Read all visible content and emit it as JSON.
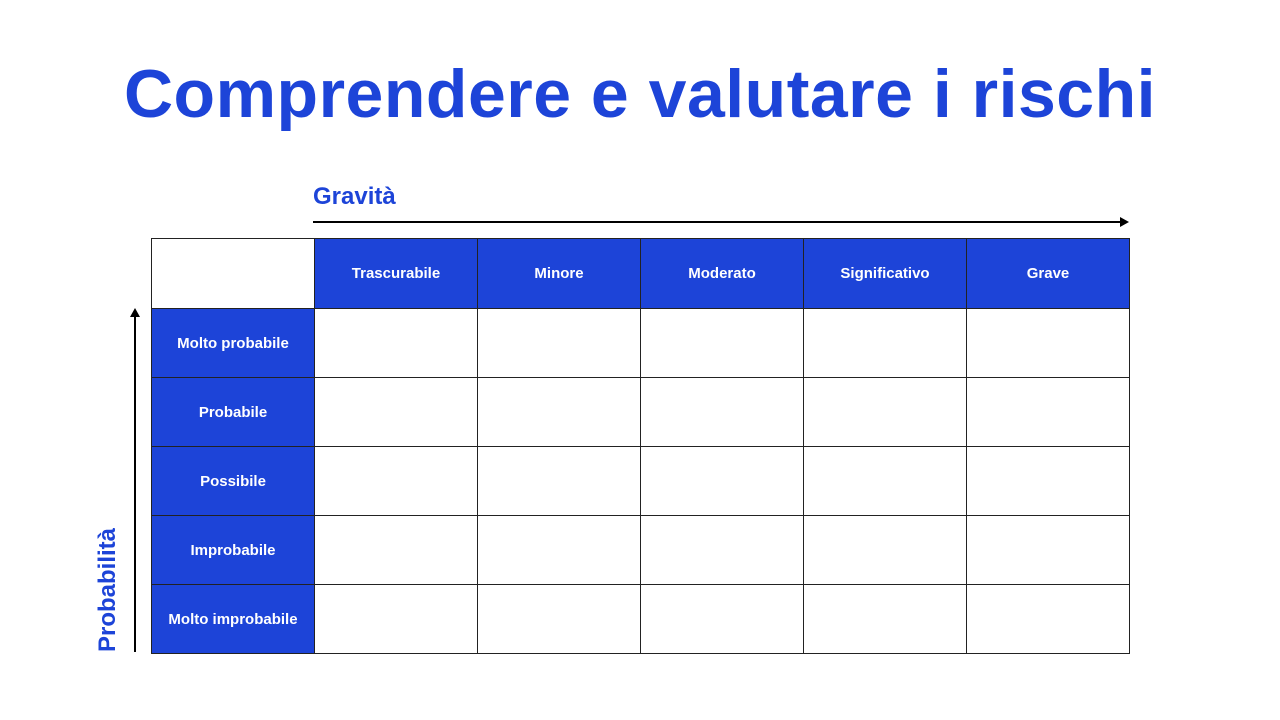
{
  "title": "Comprendere e valutare i rischi",
  "x_axis_label": "Gravità",
  "y_axis_label": "Probabilità",
  "columns": [
    "Trascurabile",
    "Minore",
    "Moderato",
    "Significativo",
    "Grave"
  ],
  "rows": [
    "Molto probabile",
    "Probabile",
    "Possibile",
    "Improbabile",
    "Molto improbabile"
  ],
  "colors": {
    "accent": "#1d44d8",
    "grid": "#222222"
  }
}
